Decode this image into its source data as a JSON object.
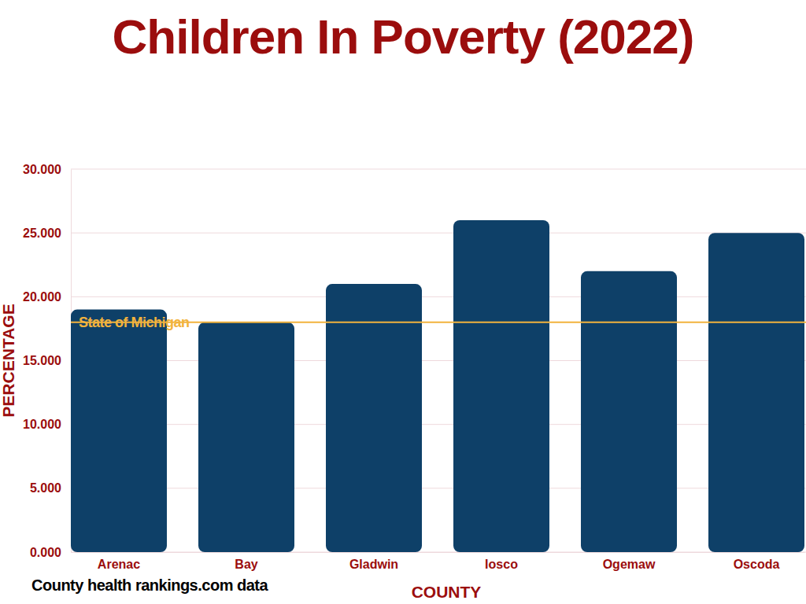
{
  "chart_data": {
    "type": "bar",
    "title": "Children In Poverty (2022)",
    "xlabel": "COUNTY",
    "ylabel": "PERCENTAGE",
    "source": "County health rankings.com data",
    "categories": [
      "Arenac",
      "Bay",
      "Gladwin",
      "Iosco",
      "Ogemaw",
      "Oscoda"
    ],
    "values": [
      19,
      18,
      21,
      26,
      22,
      25
    ],
    "color": "#0e4068",
    "ylim": [
      0,
      30
    ],
    "yticks": [
      {
        "value": 0,
        "label": "0.000"
      },
      {
        "value": 5,
        "label": "5.000"
      },
      {
        "value": 10,
        "label": "10.000"
      },
      {
        "value": 15,
        "label": "15.000"
      },
      {
        "value": 20,
        "label": "20.000"
      },
      {
        "value": 25,
        "label": "25.000"
      },
      {
        "value": 30,
        "label": "30.000"
      }
    ],
    "grid": true,
    "annotations": [
      {
        "text": "State of Michigan",
        "y": 18
      }
    ]
  }
}
